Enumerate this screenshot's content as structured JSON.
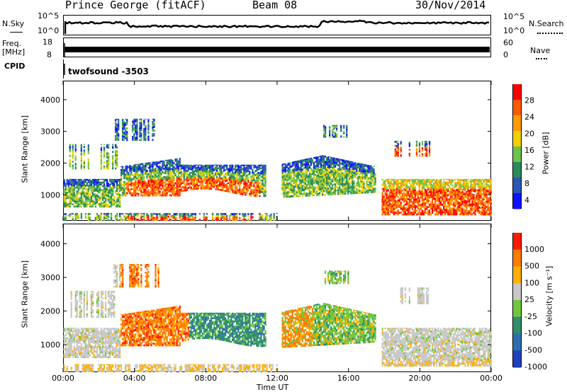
{
  "header": {
    "station": "Prince George (fitACF)",
    "beam": "Beam 08",
    "date": "30/Nov/2014"
  },
  "strips": {
    "nsky_label": "N.Sky",
    "nsky_ticks": [
      "10^5",
      "10^0"
    ],
    "nsearch_label": "N.Search",
    "freq_label_1": "Freq.",
    "freq_label_2": "[MHz]",
    "freq_ticks": [
      "18",
      "8"
    ],
    "nave_label": "Nave",
    "nave_ticks": [
      "60",
      "0"
    ],
    "cpid_label": "CPID",
    "cpid_value": "twofsound  -3503"
  },
  "chart_data": [
    {
      "type": "heatmap",
      "name": "power",
      "ylabel": "Slant Range [km]",
      "xlabel": "Time UT",
      "yticks": [
        "1000",
        "2000",
        "3000",
        "4000"
      ],
      "ylim": [
        180,
        4600
      ],
      "xticks": [
        "00:00",
        "04:00",
        "08:00",
        "12:00",
        "16:00",
        "20:00",
        "00:00"
      ],
      "colorbar_label": "Power [dB]",
      "colorbar_ticks": [
        "28",
        "24",
        "20",
        "16",
        "12",
        "8",
        "4"
      ],
      "colorscale": [
        "#1010ff",
        "#2b56b5",
        "#2a8a5a",
        "#6cc24a",
        "#f0d000",
        "#ff9a00",
        "#ff5a00",
        "#ff0000"
      ]
    },
    {
      "type": "heatmap",
      "name": "velocity",
      "ylabel": "Slant Range [km]",
      "xlabel": "Time UT",
      "yticks": [
        "1000",
        "2000",
        "3000",
        "4000"
      ],
      "ylim": [
        180,
        4600
      ],
      "xticks": [
        "00:00",
        "04:00",
        "08:00",
        "12:00",
        "16:00",
        "20:00",
        "00:00"
      ],
      "colorbar_label": "Velocity [m s⁻¹]",
      "colorbar_ticks": [
        "1000",
        "500",
        "100",
        "25",
        "-25",
        "-100",
        "-500",
        "-1000"
      ],
      "colorscale": [
        "#2040c0",
        "#2c6fb0",
        "#2e8f6a",
        "#6fc63e",
        "#c8c8c8",
        "#ffb000",
        "#ff7a00",
        "#ff1a00"
      ]
    }
  ]
}
